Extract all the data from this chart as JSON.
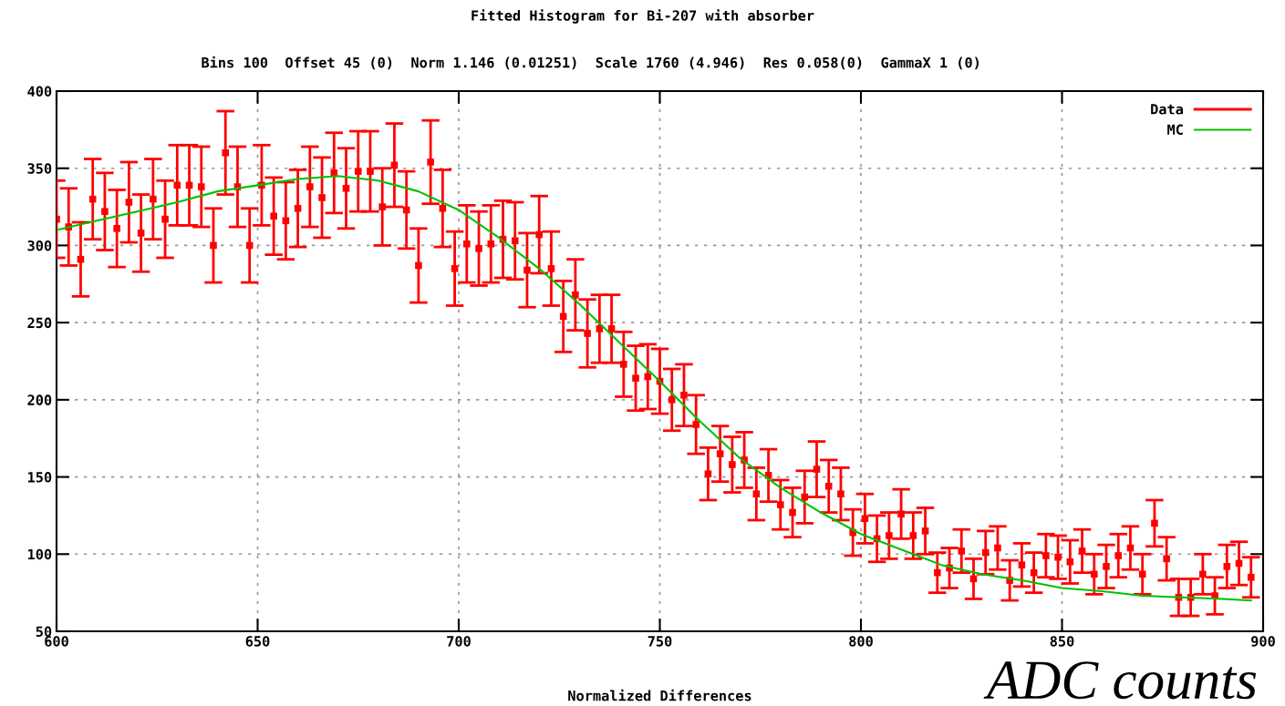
{
  "chart_data": {
    "type": "scatter",
    "title": "Fitted Histogram for Bi-207 with absorber",
    "subtitle": "Bins 100  Offset 45 (0)  Norm 1.146 (0.01251)  Scale 1760 (4.946)  Res 0.058(0)  GammaX 1 (0)",
    "xlabel": "Normalized Differences",
    "annotations": [
      "ADC counts"
    ],
    "xlim": [
      600,
      900
    ],
    "xticks": [
      600,
      650,
      700,
      750,
      800,
      850,
      900
    ],
    "ylim": [
      50,
      400
    ],
    "yticks": [
      50,
      100,
      150,
      200,
      250,
      300,
      350,
      400
    ],
    "grid": true,
    "legend": "top right",
    "x": [
      600,
      603,
      606,
      609,
      612,
      615,
      618,
      621,
      624,
      627,
      630,
      633,
      636,
      639,
      642,
      645,
      648,
      651,
      654,
      657,
      660,
      663,
      666,
      669,
      672,
      675,
      678,
      681,
      684,
      687,
      690,
      693,
      696,
      699,
      702,
      705,
      708,
      711,
      714,
      717,
      720,
      723,
      726,
      729,
      732,
      735,
      738,
      741,
      744,
      747,
      750,
      753,
      756,
      759,
      762,
      765,
      768,
      771,
      774,
      777,
      780,
      783,
      786,
      789,
      792,
      795,
      798,
      801,
      804,
      807,
      810,
      813,
      816,
      819,
      822,
      825,
      828,
      831,
      834,
      837,
      840,
      843,
      846,
      849,
      852,
      855,
      858,
      861,
      864,
      867,
      870,
      873,
      876,
      879,
      882,
      885,
      888,
      891,
      894,
      897
    ],
    "series": [
      {
        "name": "Data",
        "color": "#ff0000",
        "marker": "square",
        "values": [
          317,
          312,
          291,
          330,
          322,
          311,
          328,
          308,
          330,
          317,
          339,
          339,
          338,
          300,
          360,
          338,
          300,
          339,
          319,
          316,
          324,
          338,
          331,
          347,
          337,
          348,
          348,
          325,
          352,
          323,
          287,
          354,
          324,
          285,
          301,
          298,
          301,
          304,
          303,
          284,
          307,
          285,
          254,
          268,
          243,
          246,
          246,
          223,
          214,
          215,
          212,
          200,
          203,
          184,
          152,
          165,
          158,
          161,
          139,
          151,
          132,
          127,
          137,
          155,
          144,
          139,
          114,
          123,
          110,
          112,
          126,
          112,
          115,
          88,
          91,
          102,
          84,
          101,
          104,
          83,
          93,
          88,
          99,
          98,
          95,
          102,
          87,
          92,
          99,
          104,
          87,
          120,
          97,
          72,
          72,
          87,
          73,
          92,
          94,
          85
        ],
        "errors": [
          25,
          25,
          24,
          26,
          25,
          25,
          26,
          25,
          26,
          25,
          26,
          26,
          26,
          24,
          27,
          26,
          24,
          26,
          25,
          25,
          25,
          26,
          26,
          26,
          26,
          26,
          26,
          25,
          27,
          25,
          24,
          27,
          25,
          24,
          25,
          24,
          25,
          25,
          25,
          24,
          25,
          24,
          23,
          23,
          22,
          22,
          22,
          21,
          21,
          21,
          21,
          20,
          20,
          19,
          17,
          18,
          18,
          18,
          17,
          17,
          16,
          16,
          17,
          18,
          17,
          17,
          15,
          16,
          15,
          15,
          16,
          15,
          15,
          13,
          13,
          14,
          13,
          14,
          14,
          13,
          14,
          13,
          14,
          14,
          14,
          14,
          13,
          14,
          14,
          14,
          13,
          15,
          14,
          12,
          12,
          13,
          12,
          14,
          14,
          13
        ]
      },
      {
        "name": "MC",
        "type": "line",
        "color": "#00c000",
        "x": [
          600,
          610,
          620,
          630,
          640,
          650,
          660,
          670,
          680,
          690,
          700,
          710,
          720,
          730,
          740,
          750,
          760,
          770,
          780,
          790,
          800,
          810,
          820,
          830,
          840,
          850,
          860,
          870,
          880,
          890,
          897
        ],
        "values": [
          310,
          316,
          322,
          328,
          335,
          339,
          343,
          345,
          342,
          335,
          323,
          305,
          285,
          262,
          237,
          212,
          186,
          162,
          143,
          127,
          113,
          103,
          93,
          87,
          83,
          78,
          76,
          73,
          72,
          71,
          70
        ]
      }
    ]
  }
}
